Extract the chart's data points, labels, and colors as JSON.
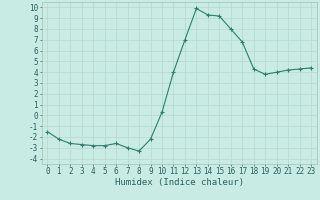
{
  "x": [
    0,
    1,
    2,
    3,
    4,
    5,
    6,
    7,
    8,
    9,
    10,
    11,
    12,
    13,
    14,
    15,
    16,
    17,
    18,
    19,
    20,
    21,
    22,
    23
  ],
  "y": [
    -1.5,
    -2.2,
    -2.6,
    -2.7,
    -2.8,
    -2.8,
    -2.6,
    -3.0,
    -3.3,
    -2.2,
    0.3,
    4.0,
    7.0,
    9.9,
    9.3,
    9.2,
    8.0,
    6.8,
    4.3,
    3.8,
    4.0,
    4.2,
    4.3,
    4.4
  ],
  "line_color": "#2e7d6e",
  "marker": "+",
  "bg_color": "#c8ebe3",
  "grid_color": "#b8d8d0",
  "xlabel": "Humidex (Indice chaleur)",
  "xlim": [
    -0.5,
    23.5
  ],
  "ylim": [
    -4.5,
    10.5
  ],
  "yticks": [
    -4,
    -3,
    -2,
    -1,
    0,
    1,
    2,
    3,
    4,
    5,
    6,
    7,
    8,
    9,
    10
  ],
  "xticks": [
    0,
    1,
    2,
    3,
    4,
    5,
    6,
    7,
    8,
    9,
    10,
    11,
    12,
    13,
    14,
    15,
    16,
    17,
    18,
    19,
    20,
    21,
    22,
    23
  ],
  "tick_fontsize": 5.5,
  "xlabel_fontsize": 6.5,
  "label_color": "#2d6060",
  "spine_color": "#a0c0b8",
  "line_width": 0.8,
  "marker_size": 3,
  "marker_edge_width": 0.8
}
